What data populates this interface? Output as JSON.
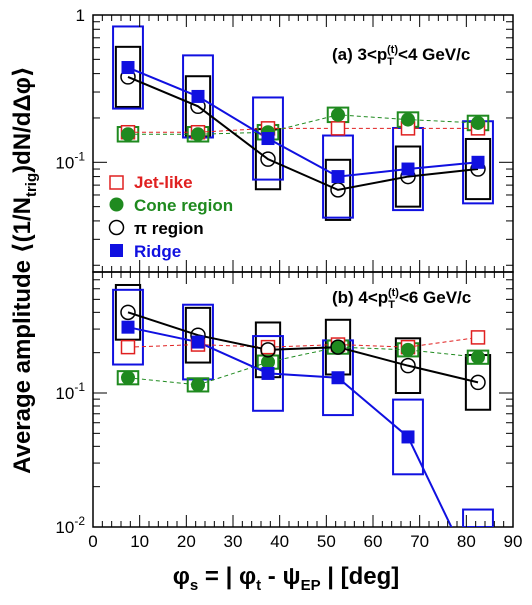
{
  "chart_data": {
    "type": "scatter",
    "xlabel": "φs = | φt - ψEP |  [deg]",
    "ylabel": "Average amplitude ⟨(1/Ntrig)dN/dΔφ⟩",
    "xlim": [
      0,
      90
    ],
    "x_ticks": [
      "0",
      "10",
      "20",
      "30",
      "40",
      "50",
      "60",
      "70",
      "80",
      "90"
    ],
    "legend": [
      {
        "label": "Jet-like",
        "marker": "open-square",
        "color": "#e02020"
      },
      {
        "label": "Cone region",
        "marker": "filled-circle",
        "color": "#1f8a1f"
      },
      {
        "label": "π region",
        "marker": "open-circle",
        "color": "#000000"
      },
      {
        "label": "Ridge",
        "marker": "filled-square",
        "color": "#1010e0"
      }
    ],
    "panels": [
      {
        "title": "(a) 3<pT(t)<4 GeV/c",
        "yscale": "log",
        "ylim": [
          0.018,
          1
        ],
        "y_tick_labels": [
          "1",
          "10-1"
        ],
        "series": [
          {
            "name": "Jet-like",
            "x": [
              7.5,
              22.5,
              37.5,
              52.5,
              67.5,
              82.5
            ],
            "y": [
              0.16,
              0.16,
              0.17,
              0.17,
              0.17,
              0.17
            ]
          },
          {
            "name": "Cone region",
            "x": [
              7.5,
              22.5,
              37.5,
              52.5,
              67.5,
              82.5
            ],
            "y": [
              0.155,
              0.155,
              0.16,
              0.21,
              0.195,
              0.185
            ]
          },
          {
            "name": "π region",
            "x": [
              7.5,
              22.5,
              37.5,
              52.5,
              67.5,
              82.5
            ],
            "y": [
              0.38,
              0.24,
              0.105,
              0.065,
              0.08,
              0.09
            ]
          },
          {
            "name": "Ridge",
            "x": [
              7.5,
              22.5,
              37.5,
              52.5,
              67.5,
              82.5
            ],
            "y": [
              0.44,
              0.28,
              0.145,
              0.08,
              0.09,
              0.1
            ]
          }
        ]
      },
      {
        "title": "(b) 4<pT(t)<6 GeV/c",
        "yscale": "log",
        "ylim": [
          0.01,
          0.8
        ],
        "y_tick_labels": [
          "10-1",
          "10-2"
        ],
        "series": [
          {
            "name": "Jet-like",
            "x": [
              7.5,
              22.5,
              37.5,
              52.5,
              67.5,
              82.5
            ],
            "y": [
              0.22,
              0.23,
              0.22,
              0.23,
              0.22,
              0.26
            ]
          },
          {
            "name": "Cone region",
            "x": [
              7.5,
              22.5,
              37.5,
              52.5,
              67.5,
              82.5
            ],
            "y": [
              0.13,
              0.115,
              0.17,
              0.22,
              0.21,
              0.185
            ]
          },
          {
            "name": "π region",
            "x": [
              7.5,
              22.5,
              37.5,
              52.5,
              67.5,
              82.5
            ],
            "y": [
              0.4,
              0.27,
              0.21,
              0.22,
              0.16,
              0.12
            ]
          },
          {
            "name": "Ridge",
            "x": [
              7.5,
              22.5,
              37.5,
              52.5,
              67.5
            ],
            "y": [
              0.31,
              0.24,
              0.14,
              0.13,
              0.047
            ]
          }
        ]
      }
    ]
  }
}
